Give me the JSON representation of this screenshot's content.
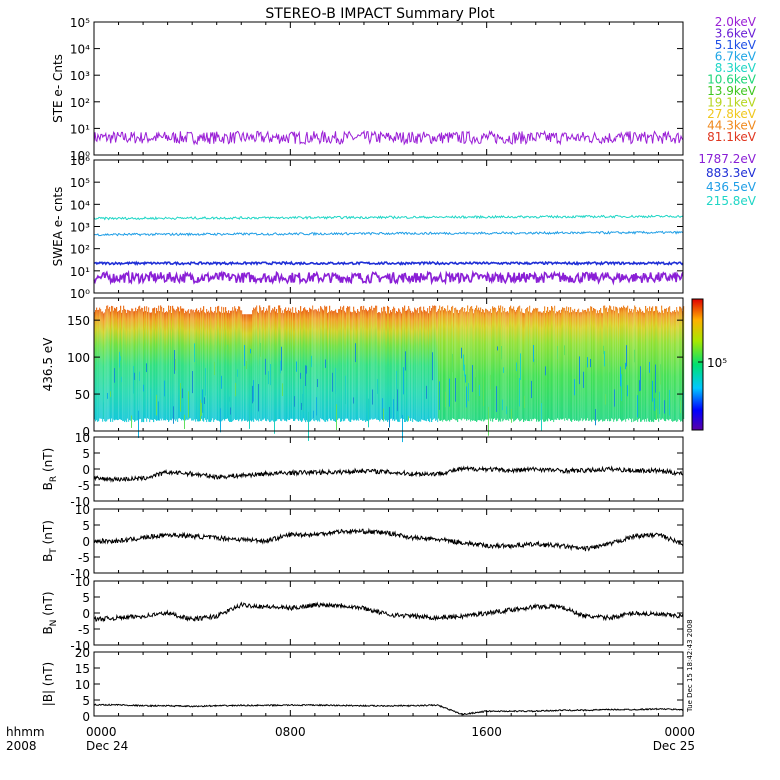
{
  "title": "STEREO-B IMPACT Summary Plot",
  "timestamp_vertical": "Tue Dec 15 18:42:43 2008",
  "x_axis": {
    "label_line1": "hhmm",
    "label_line2": "2008",
    "ticks": [
      {
        "top": "0000",
        "bottom": "Dec 24"
      },
      {
        "top": "0800",
        "bottom": ""
      },
      {
        "top": "1600",
        "bottom": ""
      },
      {
        "top": "0000",
        "bottom": "Dec 25"
      }
    ]
  },
  "colorbar_label": "10⁵",
  "chart_data": [
    {
      "type": "line",
      "panel": "ste",
      "ylabel": "STE e- Cnts",
      "yscale": "log",
      "ylim": [
        1,
        100000
      ],
      "ytick_labels": [
        "10⁰",
        "10¹",
        "10²",
        "10³",
        "10⁴",
        "10⁵"
      ],
      "legend_position": "right",
      "series": [
        {
          "name": "2.0keV",
          "color": "#9a1fd6",
          "level": 4.5
        },
        {
          "name": "3.6keV",
          "color": "#6a1fd6",
          "level": null
        },
        {
          "name": "5.1keV",
          "color": "#1f4fe6",
          "level": null
        },
        {
          "name": "6.7keV",
          "color": "#1fa6e6",
          "level": null
        },
        {
          "name": "8.3keV",
          "color": "#1fd6c6",
          "level": null
        },
        {
          "name": "10.6keV",
          "color": "#1fd67a",
          "level": null
        },
        {
          "name": "13.9keV",
          "color": "#3fc61f",
          "level": null
        },
        {
          "name": "19.1keV",
          "color": "#b6d61f",
          "level": null
        },
        {
          "name": "27.8keV",
          "color": "#f0c81f",
          "level": null
        },
        {
          "name": "44.3keV",
          "color": "#f08a1f",
          "level": null
        },
        {
          "name": "81.1keV",
          "color": "#e0361f",
          "level": null
        }
      ]
    },
    {
      "type": "line",
      "panel": "swea",
      "ylabel": "SWEA e- cnts",
      "yscale": "log",
      "ylim": [
        1,
        1000000
      ],
      "ytick_labels": [
        "10⁰",
        "10¹",
        "10²",
        "10³",
        "10⁴",
        "10⁵",
        "10⁶"
      ],
      "legend_position": "right",
      "series": [
        {
          "name": "1787.2eV",
          "color": "#8a1fd6",
          "level": 5
        },
        {
          "name": "883.3eV",
          "color": "#1f2fd6",
          "level": 22
        },
        {
          "name": "436.5eV",
          "color": "#1f9ee6",
          "level": 430
        },
        {
          "name": "215.8eV",
          "color": "#1fd6c6",
          "level": 2300
        }
      ]
    },
    {
      "type": "heatmap",
      "panel": "pitch_angle",
      "ylabel": "436.5 eV",
      "ylim": [
        0,
        180
      ],
      "yticks": [
        0,
        50,
        100,
        150
      ],
      "colorbar": "rainbow"
    },
    {
      "type": "line",
      "panel": "br",
      "ylabel": "B",
      "ylabel_sub": "R",
      "ylabel_unit": " (nT)",
      "ylim": [
        -10,
        10
      ],
      "yticks": [
        -10,
        -5,
        0,
        5,
        10
      ],
      "x": [
        0,
        1,
        2,
        3,
        4,
        5,
        6,
        7,
        8,
        9,
        10,
        11,
        12,
        13,
        14,
        15,
        16,
        17,
        18,
        19,
        20,
        21,
        22,
        23,
        24
      ],
      "y": [
        -3,
        -3.2,
        -3,
        -1,
        -1.5,
        -2.5,
        -2,
        -1.5,
        -1.2,
        -1,
        -1,
        -0.5,
        -1,
        -1.5,
        -1.5,
        0,
        0,
        -0.5,
        0,
        -0.5,
        -0.5,
        0,
        -0.5,
        -0.5,
        -1.5
      ]
    },
    {
      "type": "line",
      "panel": "bt",
      "ylabel": "B",
      "ylabel_sub": "T",
      "ylabel_unit": " (nT)",
      "ylim": [
        -10,
        10
      ],
      "yticks": [
        -10,
        -5,
        0,
        5,
        10
      ],
      "x": [
        0,
        1,
        2,
        3,
        4,
        5,
        6,
        7,
        8,
        9,
        10,
        11,
        12,
        13,
        14,
        15,
        16,
        17,
        18,
        19,
        20,
        21,
        22,
        23,
        24
      ],
      "y": [
        0,
        0,
        1,
        2,
        1.5,
        1,
        0.5,
        0,
        2,
        2,
        3,
        3,
        2.5,
        1,
        0.5,
        -0.5,
        -1.5,
        -1.5,
        -1,
        -1.5,
        -2.5,
        -1,
        1.5,
        2,
        -1
      ]
    },
    {
      "type": "line",
      "panel": "bn",
      "ylabel": "B",
      "ylabel_sub": "N",
      "ylabel_unit": " (nT)",
      "ylim": [
        -10,
        10
      ],
      "yticks": [
        -10,
        -5,
        0,
        5,
        10
      ],
      "x": [
        0,
        1,
        2,
        3,
        4,
        5,
        6,
        7,
        8,
        9,
        10,
        11,
        12,
        13,
        14,
        15,
        16,
        17,
        18,
        19,
        20,
        21,
        22,
        23,
        24
      ],
      "y": [
        -2,
        -1.5,
        -1,
        0,
        -2,
        -1,
        2.5,
        2,
        1.5,
        2.5,
        2.5,
        1.5,
        -0.5,
        -1,
        -1.5,
        -1,
        0,
        1,
        2,
        2,
        -1,
        -1.5,
        0,
        -0.5,
        -1
      ]
    },
    {
      "type": "line",
      "panel": "bmag",
      "ylabel": "|B| (nT)",
      "ylim": [
        0,
        20
      ],
      "yticks": [
        0,
        5,
        10,
        15,
        20
      ],
      "x": [
        0,
        1,
        2,
        3,
        4,
        5,
        6,
        7,
        8,
        9,
        10,
        11,
        12,
        13,
        14,
        15,
        16,
        17,
        18,
        19,
        20,
        21,
        22,
        23,
        24
      ],
      "y": [
        3.5,
        3.5,
        3.2,
        3.2,
        3,
        3.2,
        3.3,
        3.3,
        3.4,
        3.4,
        3.3,
        3.2,
        3.2,
        3.2,
        3.4,
        0.5,
        1.5,
        1.5,
        1.5,
        1.8,
        1.8,
        2,
        2,
        2.2,
        2
      ]
    }
  ]
}
